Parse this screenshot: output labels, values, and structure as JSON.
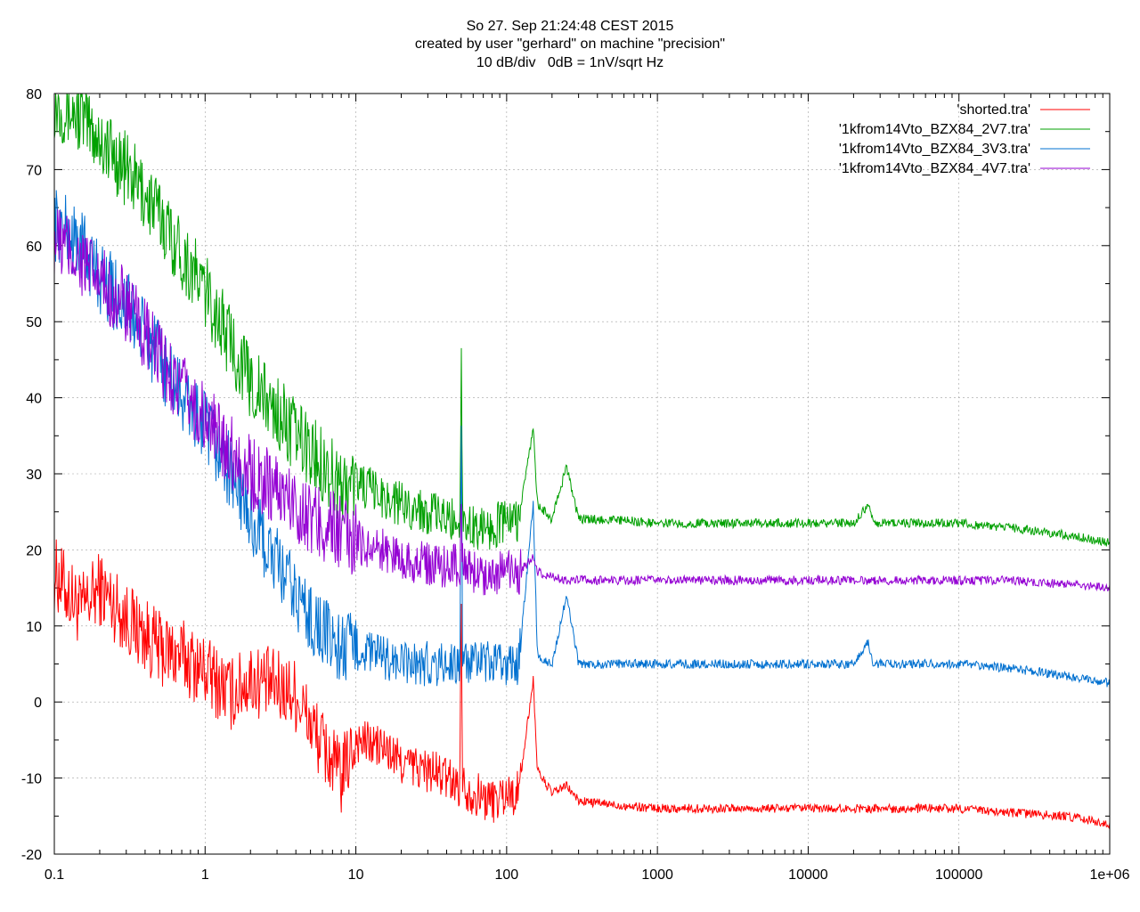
{
  "chart_data": {
    "type": "line",
    "title_lines": [
      "So 27. Sep 21:24:48 CEST 2015",
      "created by user \"gerhard\" on machine \"precision\"",
      "10 dB/div   0dB = 1nV/sqrt Hz"
    ],
    "x_scale": "log",
    "xlim": [
      0.1,
      1000000
    ],
    "ylim": [
      -20,
      80
    ],
    "x_ticks": [
      {
        "value": 0.1,
        "label": "0.1"
      },
      {
        "value": 1,
        "label": "1"
      },
      {
        "value": 10,
        "label": "10"
      },
      {
        "value": 100,
        "label": "100"
      },
      {
        "value": 1000,
        "label": "1000"
      },
      {
        "value": 10000,
        "label": "10000"
      },
      {
        "value": 100000,
        "label": "100000"
      },
      {
        "value": 1000000,
        "label": "1e+06"
      }
    ],
    "y_ticks": [
      {
        "value": 80,
        "label": "80"
      },
      {
        "value": 70,
        "label": "70"
      },
      {
        "value": 60,
        "label": "60"
      },
      {
        "value": 50,
        "label": "50"
      },
      {
        "value": 40,
        "label": "40"
      },
      {
        "value": 30,
        "label": "30"
      },
      {
        "value": 20,
        "label": "20"
      },
      {
        "value": 10,
        "label": "10"
      },
      {
        "value": 0,
        "label": "0"
      },
      {
        "value": -10,
        "label": "-10"
      },
      {
        "value": -20,
        "label": "-20"
      }
    ],
    "grid": true,
    "legend_position": "top-right",
    "series": [
      {
        "name": "'shorted.tra'",
        "color": "#ff0000",
        "x": [
          0.1,
          0.15,
          0.2,
          0.3,
          0.5,
          0.7,
          1,
          1.5,
          2,
          3,
          4,
          5,
          7,
          8,
          10,
          15,
          20,
          30,
          40,
          49,
          50,
          51,
          60,
          80,
          100,
          120,
          150,
          160,
          200,
          250,
          300,
          500,
          1000,
          2000,
          5000,
          10000,
          20000,
          50000,
          100000,
          200000,
          500000,
          1000000
        ],
        "y": [
          17,
          12,
          15,
          11,
          7,
          6,
          4,
          1,
          3,
          2,
          1,
          -3,
          -8,
          -10,
          -5,
          -6,
          -8,
          -9,
          -10,
          -11,
          17,
          -11,
          -12,
          -13,
          -12,
          -12,
          3,
          -9,
          -12,
          -11,
          -13,
          -13.5,
          -14,
          -14,
          -14,
          -14,
          -14,
          -14,
          -14,
          -14.5,
          -15,
          -16
        ]
      },
      {
        "name": "'1kfrom14Vto_BZX84_2V7.tra'",
        "color": "#00a000",
        "x": [
          0.1,
          0.15,
          0.2,
          0.3,
          0.5,
          0.7,
          1,
          1.5,
          2,
          3,
          4,
          5,
          7,
          8,
          10,
          15,
          20,
          30,
          40,
          49,
          50,
          51,
          60,
          80,
          100,
          120,
          150,
          160,
          200,
          250,
          300,
          500,
          1000,
          2000,
          5000,
          10000,
          20000,
          25000,
          27000,
          50000,
          100000,
          200000,
          500000,
          1000000
        ],
        "y": [
          79,
          77,
          74,
          70,
          64,
          59,
          54,
          47,
          42,
          38,
          35,
          33,
          30,
          28,
          29,
          27,
          26,
          25,
          24,
          24,
          47,
          24,
          23,
          23,
          24,
          24,
          36,
          26,
          24,
          31,
          24,
          24,
          23.5,
          23.5,
          23.5,
          23.5,
          23.5,
          26,
          23.5,
          23.5,
          23.5,
          23,
          22,
          21
        ]
      },
      {
        "name": "'1kfrom14Vto_BZX84_3V3.tra'",
        "color": "#0070d0",
        "x": [
          0.1,
          0.15,
          0.2,
          0.3,
          0.5,
          0.7,
          1,
          1.5,
          2,
          3,
          4,
          5,
          7,
          8,
          10,
          15,
          20,
          30,
          40,
          49,
          50,
          51,
          60,
          80,
          100,
          120,
          150,
          160,
          200,
          250,
          300,
          500,
          1000,
          2000,
          5000,
          10000,
          20000,
          25000,
          27000,
          50000,
          100000,
          200000,
          500000,
          1000000
        ],
        "y": [
          63,
          60,
          56,
          52,
          45,
          40,
          36,
          30,
          24,
          18,
          14,
          11,
          8,
          7,
          7,
          6,
          5,
          5,
          5,
          5,
          40,
          5,
          5,
          5,
          5,
          5,
          26,
          6,
          5,
          14,
          5,
          5,
          5,
          5,
          5,
          5,
          5,
          8,
          5,
          5,
          5,
          4.5,
          3.5,
          2.5
        ]
      },
      {
        "name": "'1kfrom14Vto_BZX84_4V7.tra'",
        "color": "#9400d3",
        "x": [
          0.1,
          0.15,
          0.2,
          0.3,
          0.5,
          0.7,
          1,
          1.5,
          2,
          3,
          4,
          5,
          7,
          8,
          10,
          15,
          20,
          30,
          40,
          49,
          50,
          51,
          60,
          80,
          100,
          120,
          150,
          160,
          200,
          250,
          300,
          500,
          1000,
          2000,
          5000,
          10000,
          20000,
          50000,
          100000,
          200000,
          500000,
          1000000
        ],
        "y": [
          61,
          58,
          55,
          52,
          45,
          41,
          37,
          33,
          30,
          28,
          26,
          24,
          23,
          22,
          21,
          20,
          19,
          18,
          18,
          18,
          25,
          18,
          17,
          17,
          17,
          17,
          19,
          17,
          16.5,
          16,
          16,
          16,
          16,
          16,
          16,
          16,
          16,
          16,
          16,
          16,
          15.5,
          15
        ]
      }
    ]
  }
}
